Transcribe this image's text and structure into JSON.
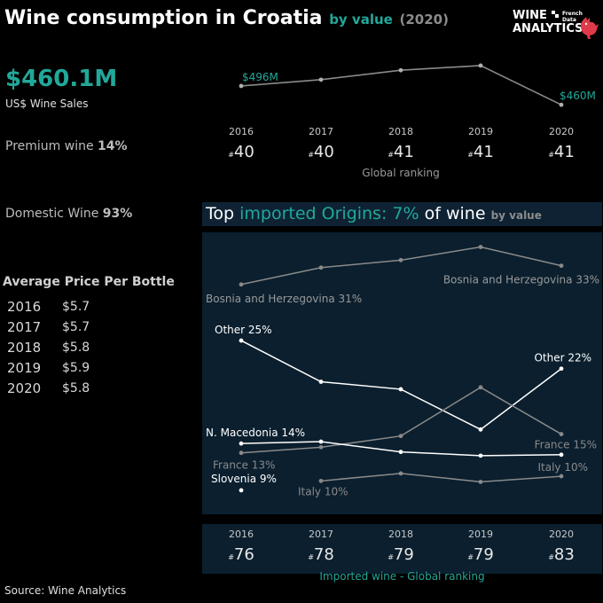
{
  "header": {
    "title": "Wine consumption in Croatia",
    "by_value": "by value",
    "year_paren": "(2020)"
  },
  "logo": {
    "line1": "WINE",
    "line2": "ANALYTICS",
    "french": "French",
    "data": "Data"
  },
  "summary": {
    "sales_value": "$460.1M",
    "sales_label": "US$ Wine Sales",
    "premium_label": "Premium wine",
    "premium_value": "14%",
    "domestic_label": "Domestic Wine",
    "domestic_value": "93%"
  },
  "avg_price": {
    "title": "Average Price Per Bottle",
    "rows": [
      {
        "year": "2016",
        "price": "$5.7"
      },
      {
        "year": "2017",
        "price": "$5.7"
      },
      {
        "year": "2018",
        "price": "$5.8"
      },
      {
        "year": "2019",
        "price": "$5.9"
      },
      {
        "year": "2020",
        "price": "$5.8"
      }
    ]
  },
  "imported_title": {
    "part1": "Top",
    "part2": "imported Origins:",
    "part3": "7%",
    "part4": "of wine",
    "part5": "by value"
  },
  "source": "Source: Wine Analytics",
  "colors": {
    "accent": "#21a89a",
    "panel": "#0b1f2e",
    "line": "#8a8a8a",
    "highlight": "#ffffff"
  },
  "chart_data": [
    {
      "type": "line",
      "name": "wine_sales",
      "x": [
        "2016",
        "2017",
        "2018",
        "2019",
        "2020"
      ],
      "series": [
        {
          "values": [
            496,
            508,
            526,
            535,
            460
          ]
        }
      ],
      "point_labels": {
        "0": "$496M",
        "4": "$460M"
      },
      "ylim": [
        440,
        545
      ]
    },
    {
      "type": "table",
      "name": "global_ranking",
      "caption": "Global ranking",
      "rank_prefix": "#",
      "x": [
        "2016",
        "2017",
        "2018",
        "2019",
        "2020"
      ],
      "values": [
        "40",
        "40",
        "41",
        "41",
        "41"
      ]
    },
    {
      "type": "line",
      "name": "top_imported_origins",
      "x": [
        "2016",
        "2017",
        "2018",
        "2019",
        "2020"
      ],
      "ylim": [
        7,
        36
      ],
      "series": [
        {
          "name": "Bosnia and Herzegovina",
          "values": [
            31,
            32.8,
            33.6,
            35,
            33
          ],
          "color": "#8a8a8a",
          "labels": {
            "0": "Bosnia and Herzegovina 31%",
            "4": "Bosnia and Herzegovina 33%"
          }
        },
        {
          "name": "Other",
          "values": [
            25,
            20.6,
            19.8,
            15.5,
            22
          ],
          "color": "#ffffff",
          "labels": {
            "0": "Other 25%",
            "4": "Other 22%"
          }
        },
        {
          "name": "France",
          "values": [
            13,
            13.6,
            14.8,
            20,
            15
          ],
          "color": "#8a8a8a",
          "labels": {
            "0": "France 13%",
            "4": "France 15%"
          }
        },
        {
          "name": "N. Macedonia",
          "values": [
            14,
            14.2,
            13.1,
            12.7,
            12.8
          ],
          "color": "#ffffff",
          "labels": {
            "0": "N. Macedonia 14%"
          }
        },
        {
          "name": "Italy",
          "values": [
            null,
            10,
            10.8,
            9.9,
            10.5
          ],
          "color": "#8a8a8a",
          "labels": {
            "1": "Italy 10%",
            "4": "Italy 10%"
          }
        },
        {
          "name": "Slovenia",
          "values": [
            9,
            null,
            null,
            null,
            null
          ],
          "color": "#ffffff",
          "labels": {
            "0": "Slovenia 9%"
          }
        }
      ]
    },
    {
      "type": "table",
      "name": "imported_ranking",
      "caption": "Imported wine - Global ranking",
      "rank_prefix": "#",
      "x": [
        "2016",
        "2017",
        "2018",
        "2019",
        "2020"
      ],
      "values": [
        "76",
        "78",
        "79",
        "79",
        "83"
      ]
    }
  ]
}
